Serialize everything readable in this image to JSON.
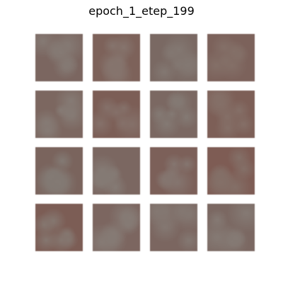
{
  "figure": {
    "title": "epoch_1_etep_199"
  },
  "samples": [
    {
      "base": "#7b6660",
      "spot": "#857a74"
    },
    {
      "base": "#7d625a",
      "spot": "#86756e"
    },
    {
      "base": "#7a6963",
      "spot": "#837872"
    },
    {
      "base": "#7c625b",
      "spot": "#847068"
    },
    {
      "base": "#7c6760",
      "spot": "#867b75"
    },
    {
      "base": "#7c5e56",
      "spot": "#85716a"
    },
    {
      "base": "#7b6862",
      "spot": "#847a74"
    },
    {
      "base": "#7d5f57",
      "spot": "#857068"
    },
    {
      "base": "#7a645d",
      "spot": "#837a74"
    },
    {
      "base": "#7b6761",
      "spot": "#857b75"
    },
    {
      "base": "#7c6059",
      "spot": "#857670"
    },
    {
      "base": "#7e5c54",
      "spot": "#847068"
    },
    {
      "base": "#7c5d55",
      "spot": "#857770"
    },
    {
      "base": "#7c6660",
      "spot": "#867b75"
    },
    {
      "base": "#7b6660",
      "spot": "#847872"
    },
    {
      "base": "#7b6862",
      "spot": "#857a74"
    }
  ]
}
